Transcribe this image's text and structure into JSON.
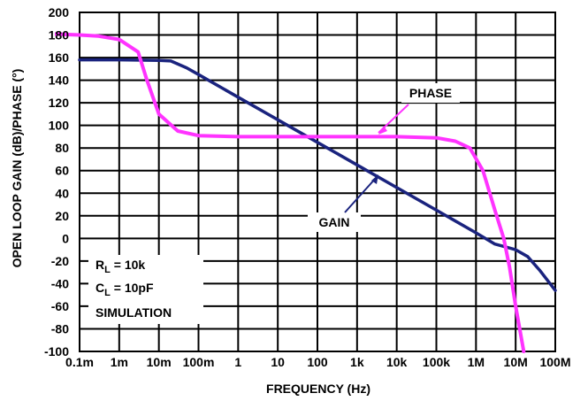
{
  "chart_data": {
    "type": "line",
    "xlabel": "FREQUENCY (Hz)",
    "ylabel": "OPEN LOOP GAIN (dB)/PHASE (°)",
    "x_scale": "log",
    "xlim": [
      0.0001,
      100000000
    ],
    "ylim": [
      -100,
      200
    ],
    "grid": true,
    "x_ticks": [
      {
        "value": 0.0001,
        "label": "0.1m"
      },
      {
        "value": 0.001,
        "label": "1m"
      },
      {
        "value": 0.01,
        "label": "10m"
      },
      {
        "value": 0.1,
        "label": "100m"
      },
      {
        "value": 1,
        "label": "1"
      },
      {
        "value": 10,
        "label": "10"
      },
      {
        "value": 100,
        "label": "100"
      },
      {
        "value": 1000,
        "label": "1k"
      },
      {
        "value": 10000,
        "label": "10k"
      },
      {
        "value": 100000,
        "label": "100k"
      },
      {
        "value": 1000000,
        "label": "1M"
      },
      {
        "value": 10000000,
        "label": "10M"
      },
      {
        "value": 100000000,
        "label": "100M"
      }
    ],
    "y_ticks": [
      {
        "value": 200,
        "label": "200"
      },
      {
        "value": 180,
        "label": "180"
      },
      {
        "value": 160,
        "label": "160"
      },
      {
        "value": 140,
        "label": "140"
      },
      {
        "value": 120,
        "label": "120"
      },
      {
        "value": 100,
        "label": "100"
      },
      {
        "value": 80,
        "label": "80"
      },
      {
        "value": 60,
        "label": "60"
      },
      {
        "value": 40,
        "label": "40"
      },
      {
        "value": 20,
        "label": "20"
      },
      {
        "value": 0,
        "label": "0"
      },
      {
        "value": -20,
        "label": "-20"
      },
      {
        "value": -40,
        "label": "-40"
      },
      {
        "value": -60,
        "label": "-60"
      },
      {
        "value": -80,
        "label": "-80"
      },
      {
        "value": -100,
        "label": "-100"
      }
    ],
    "series": [
      {
        "name": "GAIN",
        "color": "#1a237e",
        "points": [
          [
            0.0001,
            158
          ],
          [
            0.001,
            158
          ],
          [
            0.01,
            157.5
          ],
          [
            0.02,
            157
          ],
          [
            0.05,
            151
          ],
          [
            0.1,
            145
          ],
          [
            1,
            125
          ],
          [
            10,
            105
          ],
          [
            100,
            85
          ],
          [
            1000,
            65
          ],
          [
            10000,
            45
          ],
          [
            100000,
            25
          ],
          [
            1000000,
            5
          ],
          [
            3000000,
            -5
          ],
          [
            10000000,
            -10
          ],
          [
            20000000,
            -16
          ],
          [
            40000000,
            -28
          ],
          [
            100000000,
            -46
          ]
        ]
      },
      {
        "name": "PHASE",
        "color": "#ff33ff",
        "points": [
          [
            0.0001,
            180
          ],
          [
            0.0003,
            179
          ],
          [
            0.001,
            176
          ],
          [
            0.003,
            165
          ],
          [
            0.005,
            140
          ],
          [
            0.01,
            110
          ],
          [
            0.03,
            95
          ],
          [
            0.1,
            91
          ],
          [
            1,
            90
          ],
          [
            10,
            90
          ],
          [
            100,
            90
          ],
          [
            1000,
            90
          ],
          [
            10000,
            90
          ],
          [
            100000,
            89
          ],
          [
            300000,
            86
          ],
          [
            700000,
            80
          ],
          [
            1500000,
            60
          ],
          [
            3000000,
            25
          ],
          [
            5000000,
            0
          ],
          [
            7000000,
            -25
          ],
          [
            10000000,
            -60
          ],
          [
            16000000,
            -100
          ]
        ]
      }
    ],
    "annotations": [
      {
        "text": "PHASE",
        "x": 30000,
        "y": 125,
        "arrow_to": [
          1000,
          90
        ]
      },
      {
        "text": "GAIN",
        "x": 1000,
        "y": 18,
        "arrow_to": [
          3000,
          55
        ]
      },
      {
        "text": "R",
        "sub": "L",
        "rest": " = 10k"
      },
      {
        "text": "C",
        "sub": "L",
        "rest": " = 10pF"
      },
      {
        "text": "SIMULATION"
      }
    ]
  }
}
